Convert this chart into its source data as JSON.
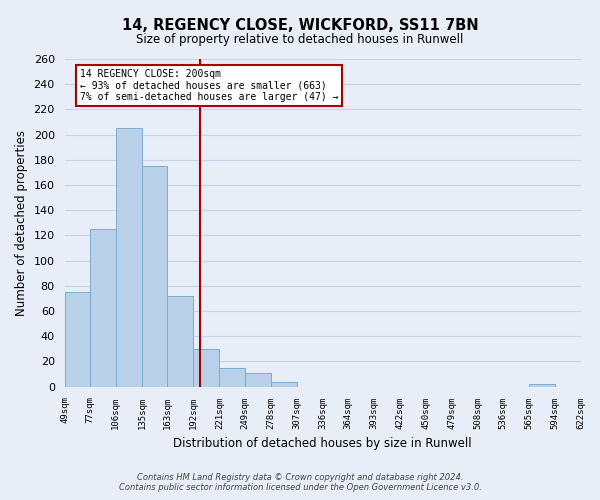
{
  "title": "14, REGENCY CLOSE, WICKFORD, SS11 7BN",
  "subtitle": "Size of property relative to detached houses in Runwell",
  "xlabel": "Distribution of detached houses by size in Runwell",
  "ylabel": "Number of detached properties",
  "bar_color": "#b8d0e8",
  "bar_edge_color": "#7aadd4",
  "bin_edges": [
    49,
    77,
    106,
    135,
    163,
    192,
    221,
    249,
    278,
    307,
    336,
    364,
    393,
    422,
    450,
    479,
    508,
    536,
    565,
    594,
    622
  ],
  "bin_labels": [
    "49sqm",
    "77sqm",
    "106sqm",
    "135sqm",
    "163sqm",
    "192sqm",
    "221sqm",
    "249sqm",
    "278sqm",
    "307sqm",
    "336sqm",
    "364sqm",
    "393sqm",
    "422sqm",
    "450sqm",
    "479sqm",
    "508sqm",
    "536sqm",
    "565sqm",
    "594sqm",
    "622sqm"
  ],
  "counts": [
    75,
    125,
    205,
    175,
    72,
    30,
    15,
    11,
    4,
    0,
    0,
    0,
    0,
    0,
    0,
    0,
    0,
    0,
    2,
    0
  ],
  "ylim": [
    0,
    260
  ],
  "yticks": [
    0,
    20,
    40,
    60,
    80,
    100,
    120,
    140,
    160,
    180,
    200,
    220,
    240,
    260
  ],
  "ref_line_sqm": 200,
  "ref_line_label": "14 REGENCY CLOSE: 200sqm",
  "annotation_line1": "← 93% of detached houses are smaller (663)",
  "annotation_line2": "7% of semi-detached houses are larger (47) →",
  "annotation_box_color": "#ffffff",
  "annotation_box_edge_color": "#aa0000",
  "ref_line_color": "#aa0000",
  "background_color": "#e8eef8",
  "grid_color": "#c8d4e8",
  "footer1": "Contains HM Land Registry data © Crown copyright and database right 2024.",
  "footer2": "Contains public sector information licensed under the Open Government Licence v3.0."
}
